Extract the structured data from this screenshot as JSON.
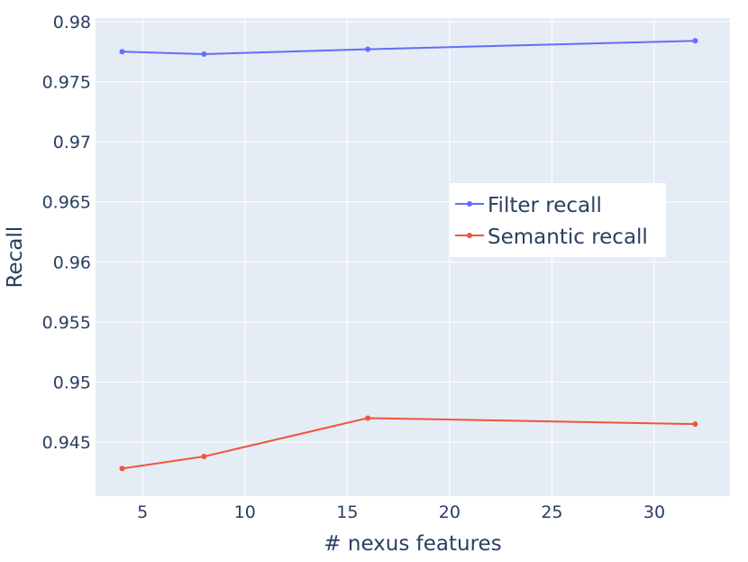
{
  "chart_data": {
    "type": "line",
    "title": "",
    "xlabel": "# nexus features",
    "ylabel": "Recall",
    "x": [
      4,
      8,
      16,
      32
    ],
    "xlim": [
      2.7,
      33.7
    ],
    "ylim": [
      0.9405,
      0.9803
    ],
    "xticks": [
      "5",
      "10",
      "15",
      "20",
      "25",
      "30"
    ],
    "yticks": [
      "0.945",
      "0.95",
      "0.955",
      "0.96",
      "0.965",
      "0.97",
      "0.975",
      "0.98"
    ],
    "grid": true,
    "legend_position": "center-right",
    "series": [
      {
        "name": "Filter recall",
        "color": "#636efa",
        "values": [
          0.9775,
          0.9773,
          0.9777,
          0.9784
        ]
      },
      {
        "name": "Semantic recall",
        "color": "#ef553b",
        "values": [
          0.9428,
          0.9438,
          0.947,
          0.9465
        ]
      }
    ],
    "colors": {
      "plot_background": "#e5ecf6",
      "grid": "#ffffff",
      "text": "#2a3f5f"
    }
  }
}
